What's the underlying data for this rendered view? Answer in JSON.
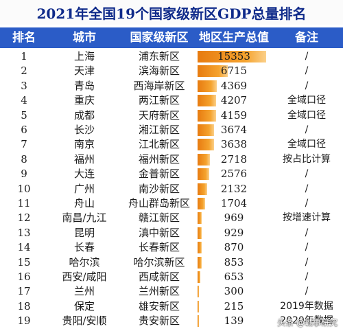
{
  "title": "2021年全国19个国家级新区GDP总量排名",
  "watermark": "头条 @城事研究",
  "chart_data": {
    "type": "table",
    "columns": [
      "排名",
      "城市",
      "国家级新区",
      "地区生产总值",
      "备注"
    ],
    "rows": [
      {
        "rank": "1",
        "city": "上海",
        "zone": "浦东新区",
        "gdp": 15353,
        "note": "/"
      },
      {
        "rank": "2",
        "city": "天津",
        "zone": "滨海新区",
        "gdp": 6715,
        "note": "/"
      },
      {
        "rank": "3",
        "city": "青岛",
        "zone": "西海岸新区",
        "gdp": 4369,
        "note": "/"
      },
      {
        "rank": "4",
        "city": "重庆",
        "zone": "两江新区",
        "gdp": 4207,
        "note": "全域口径"
      },
      {
        "rank": "5",
        "city": "成都",
        "zone": "天府新区",
        "gdp": 4159,
        "note": "全域口径"
      },
      {
        "rank": "6",
        "city": "长沙",
        "zone": "湘江新区",
        "gdp": 3674,
        "note": "/"
      },
      {
        "rank": "7",
        "city": "南京",
        "zone": "江北新区",
        "gdp": 3638,
        "note": "全域口径"
      },
      {
        "rank": "8",
        "city": "福州",
        "zone": "福州新区",
        "gdp": 2718,
        "note": "按占比计算"
      },
      {
        "rank": "9",
        "city": "大连",
        "zone": "金普新区",
        "gdp": 2576,
        "note": "/"
      },
      {
        "rank": "10",
        "city": "广州",
        "zone": "南沙新区",
        "gdp": 2132,
        "note": "/"
      },
      {
        "rank": "11",
        "city": "舟山",
        "zone": "舟山群岛新区",
        "gdp": 1704,
        "note": "/"
      },
      {
        "rank": "12",
        "city": "南昌/九江",
        "zone": "赣江新区",
        "gdp": 969,
        "note": "按增速计算"
      },
      {
        "rank": "13",
        "city": "昆明",
        "zone": "滇中新区",
        "gdp": 929,
        "note": "/"
      },
      {
        "rank": "14",
        "city": "长春",
        "zone": "长春新区",
        "gdp": 870,
        "note": "/"
      },
      {
        "rank": "15",
        "city": "哈尔滨",
        "zone": "哈尔滨新区",
        "gdp": 853,
        "note": "/"
      },
      {
        "rank": "16",
        "city": "西安/咸阳",
        "zone": "西咸新区",
        "gdp": 653,
        "note": "/"
      },
      {
        "rank": "17",
        "city": "兰州",
        "zone": "兰州新区",
        "gdp": 300,
        "note": "/"
      },
      {
        "rank": "18",
        "city": "保定",
        "zone": "雄安新区",
        "gdp": 215,
        "note": "2019年数据"
      },
      {
        "rank": "19",
        "city": "贵阳/安顺",
        "zone": "贵安新区",
        "gdp": 139,
        "note": "2020年数据"
      }
    ],
    "bar_max": 15353,
    "colors": {
      "header_bg": "#2b5cc7",
      "title_text": "#0f2a8a",
      "bar": "#f0931f"
    }
  }
}
